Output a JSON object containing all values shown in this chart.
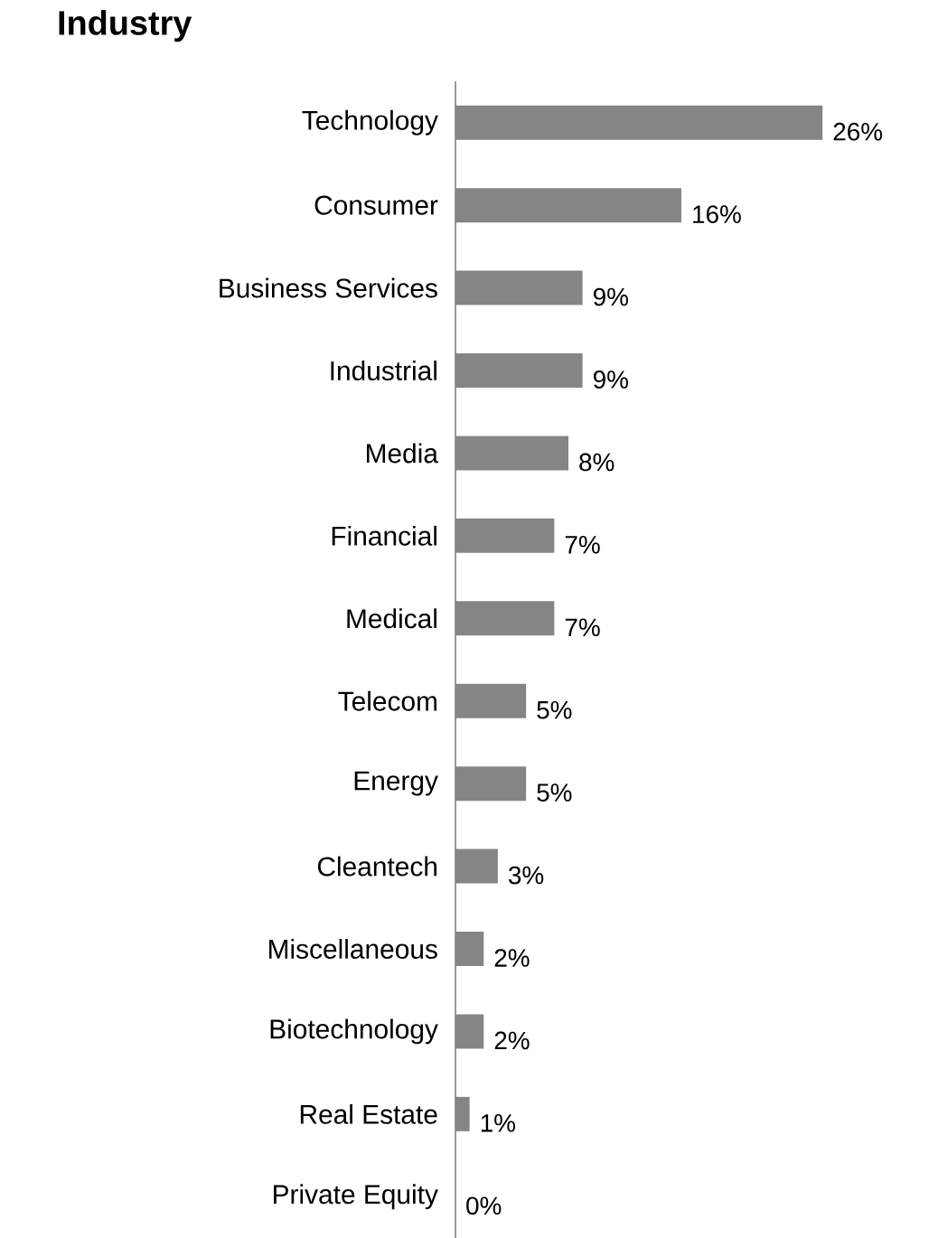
{
  "chart_data": {
    "type": "bar",
    "orientation": "horizontal",
    "title": "Industry",
    "categories": [
      "Technology",
      "Consumer",
      "Business Services",
      "Industrial",
      "Media",
      "Financial",
      "Medical",
      "Telecom",
      "Energy",
      "Cleantech",
      "Miscellaneous",
      "Biotechnology",
      "Real Estate",
      "Private Equity"
    ],
    "values": [
      26,
      16,
      9,
      9,
      8,
      7,
      7,
      5,
      5,
      3,
      2,
      2,
      1,
      0
    ],
    "value_labels": [
      "26%",
      "16%",
      "9%",
      "9%",
      "8%",
      "7%",
      "7%",
      "5%",
      "5%",
      "3%",
      "2%",
      "2%",
      "1%",
      "0%"
    ],
    "color": "#858585"
  }
}
